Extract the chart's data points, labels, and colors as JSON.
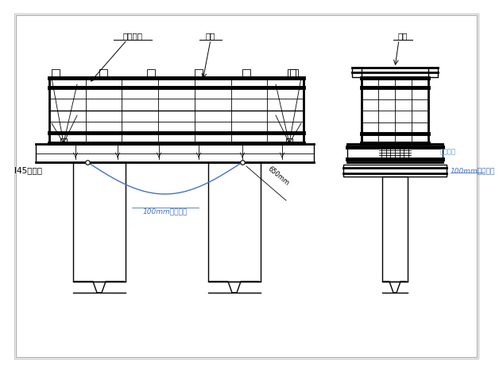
{
  "bg_color": "#ffffff",
  "lc": "#000000",
  "blue": "#4472C4",
  "lightblue": "#5BA3E0",
  "labels": {
    "xinggang_beifang": "型鉢背枡",
    "gangmo": "鉢模",
    "lagan": "拉杆",
    "i45": "I45承重梁",
    "round_steel_1": "100mm圆鉢扁担",
    "round_steel_2": "100mm圆鉢扁担",
    "dim_label": "650mm",
    "bolt_label": "对拉螺栓"
  },
  "lw_thin": 0.6,
  "lw_med": 1.0,
  "lw_thick": 2.0,
  "lw_xthick": 3.5,
  "fs": 7.5,
  "fs_small": 6.5
}
